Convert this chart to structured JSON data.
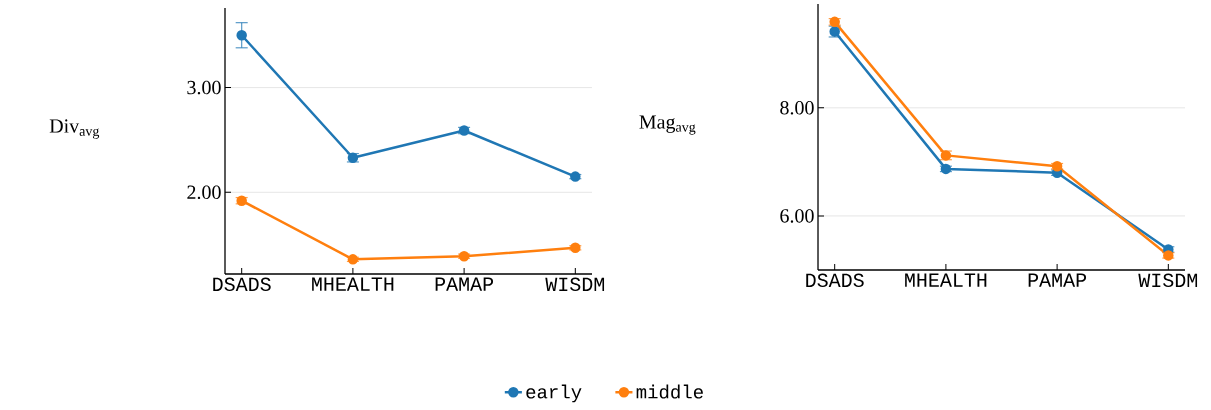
{
  "chart_data": [
    {
      "type": "line",
      "ylabel": "Div$_{avg}$",
      "categories": [
        "DSADS",
        "MHEALTH",
        "PAMAP",
        "WISDM"
      ],
      "series": [
        {
          "name": "early",
          "color": "#1f77b4",
          "values": [
            3.5,
            2.33,
            2.59,
            2.15
          ],
          "errors": [
            0.12,
            0.04,
            0.03,
            0.02
          ]
        },
        {
          "name": "middle",
          "color": "#ff7f0e",
          "values": [
            1.92,
            1.36,
            1.39,
            1.47
          ],
          "errors": [
            0.03,
            0.02,
            0.02,
            0.02
          ]
        }
      ],
      "ylim": [
        1.22,
        3.76
      ],
      "yticks": [
        {
          "value": 2,
          "label": "2.00"
        },
        {
          "value": 3,
          "label": "3.00"
        }
      ],
      "grid": "y",
      "legend": "bottom",
      "marker": "circle",
      "line_style": "solid"
    },
    {
      "type": "line",
      "ylabel": "Mag$_{avg}$",
      "categories": [
        "DSADS",
        "MHEALTH",
        "PAMAP",
        "WISDM"
      ],
      "series": [
        {
          "color": "#1f77b4",
          "values": [
            9.41,
            6.87,
            6.8,
            5.38
          ],
          "errors": [
            0.1,
            0.05,
            0.05,
            0.05
          ]
        },
        {
          "color": "#ff7f0e",
          "values": [
            9.59,
            7.12,
            6.92,
            5.27
          ],
          "errors": [
            0.06,
            0.08,
            0.05,
            0.05
          ]
        }
      ],
      "ylim": [
        5.0,
        9.92
      ],
      "yticks": [
        {
          "value": 6,
          "label": "6.00"
        },
        {
          "value": 8,
          "label": "8.00"
        }
      ],
      "grid": "y",
      "marker": "circle",
      "line_style": "solid"
    }
  ]
}
